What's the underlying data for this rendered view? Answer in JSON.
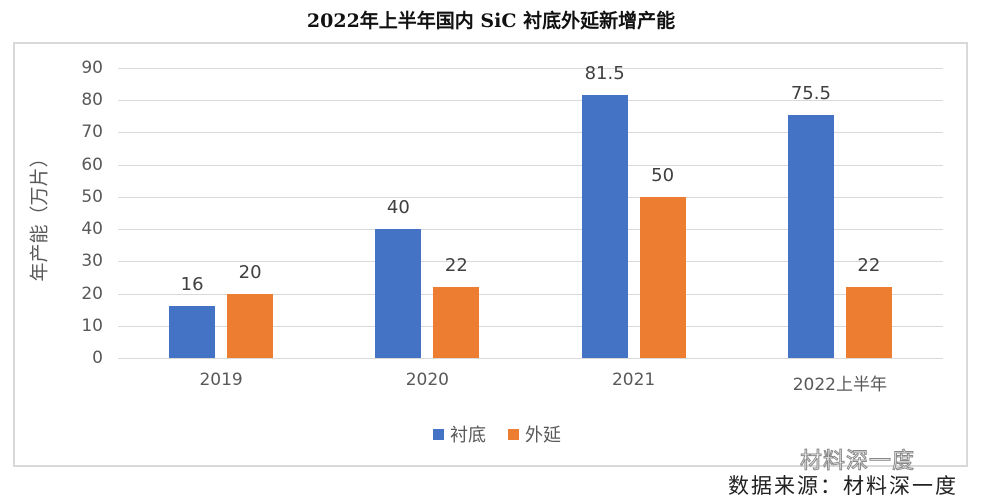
{
  "header": {
    "title": "2022年上半年国内 SiC 衬底外延新增产能"
  },
  "footer": {
    "watermark": "材料深一度",
    "source": "数据来源：材料深一度"
  },
  "colors": {
    "substrate": "#4472C4",
    "epitaxy": "#ED7D31"
  },
  "chart_data": {
    "type": "bar",
    "title": "2022年上半年国内 SiC 衬底外延新增产能",
    "xlabel": "",
    "ylabel": "年产能（万片）",
    "ylim": [
      0,
      90
    ],
    "yticks": [
      0,
      10,
      20,
      30,
      40,
      50,
      60,
      70,
      80,
      90
    ],
    "grid": true,
    "legend_position": "bottom",
    "categories": [
      "2019",
      "2020",
      "2021",
      "2022上半年"
    ],
    "series": [
      {
        "name": "衬底",
        "color": "#4472C4",
        "values": [
          16,
          40,
          81.5,
          75.5
        ]
      },
      {
        "name": "外延",
        "color": "#ED7D31",
        "values": [
          20,
          22,
          50,
          22
        ]
      }
    ]
  }
}
